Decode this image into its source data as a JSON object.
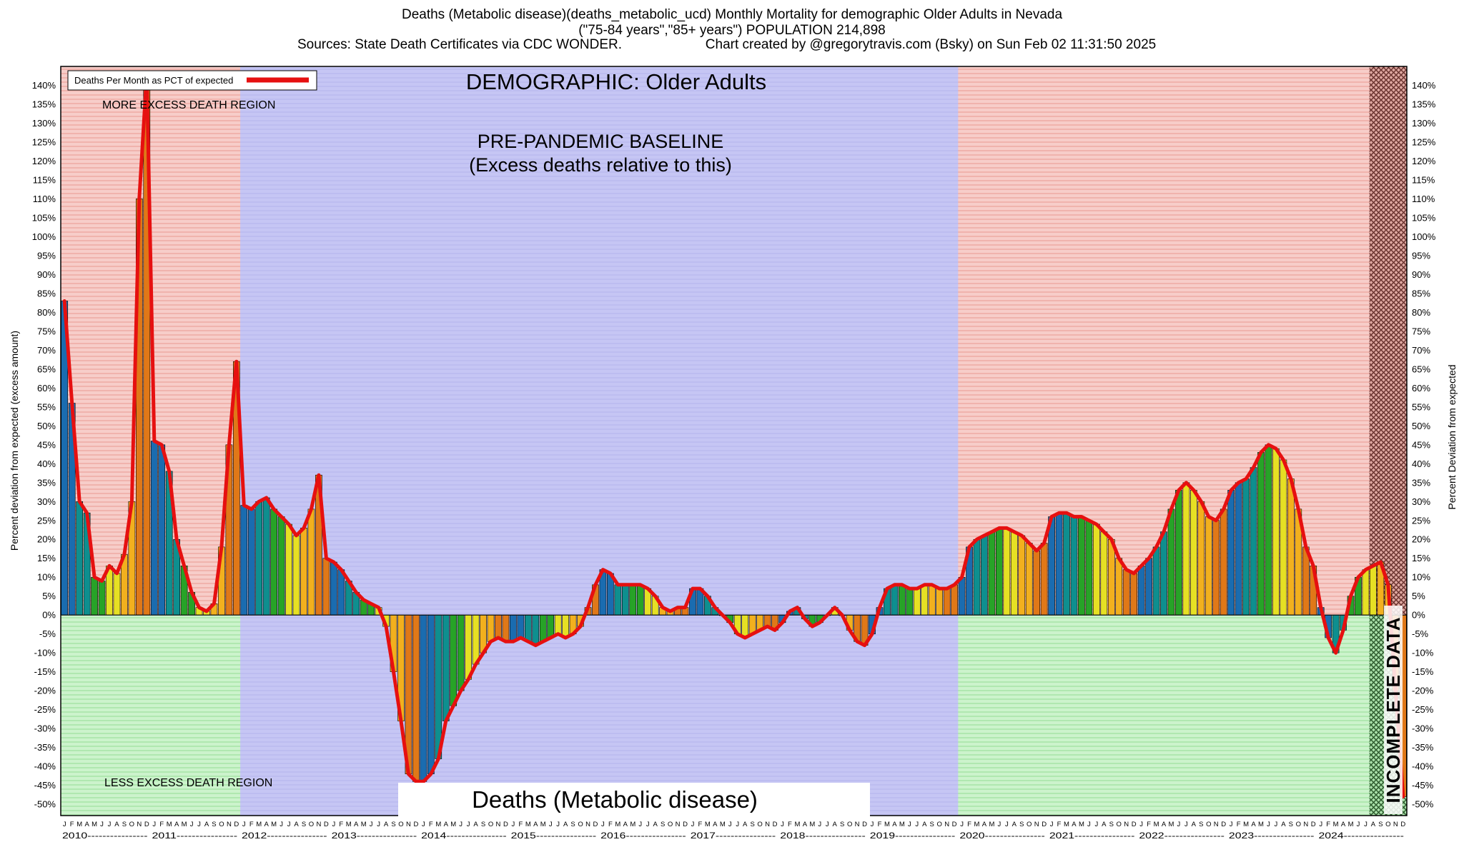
{
  "title": {
    "line1": "Deaths (Metabolic disease)(deaths_metabolic_ucd) Monthly Mortality for demographic Older Adults in Nevada",
    "line2": "(\"75-84 years\",\"85+ years\") POPULATION 214,898",
    "line3_left": "Sources: State Death Certificates via CDC WONDER.",
    "line3_right": "Chart created by @gregorytravis.com (Bsky) on Sun Feb 02 11:31:50 2025"
  },
  "legend": {
    "label": "Deaths Per Month as PCT of expected"
  },
  "annotations": {
    "demographic": "DEMOGRAPHIC: Older Adults",
    "baseline_line1": "PRE-PANDEMIC BASELINE",
    "baseline_line2": "(Excess deaths relative to this)",
    "more_excess": "MORE EXCESS DEATH REGION",
    "less_excess": "LESS EXCESS DEATH REGION",
    "incomplete": "INCOMPLETE DATA",
    "chart_label": "Deaths (Metabolic disease)"
  },
  "axes": {
    "left_title": "Percent deviation from expected (excess amount)",
    "right_title": "Percent Deviation from expected",
    "y_min": -50,
    "y_max": 140,
    "y_step": 5,
    "y_unit": "%",
    "month_letters": [
      "J",
      "F",
      "M",
      "A",
      "M",
      "J",
      "J",
      "A",
      "S",
      "O",
      "N",
      "D"
    ]
  },
  "colors": {
    "line_red": "#e61010",
    "more_excess_bg": "#f7cdc9",
    "less_excess_bg": "#ccf3cc",
    "baseline_bg": "#c6c6f4",
    "incomplete_red_hatch": "#6b3430",
    "incomplete_green_hatch": "#2f5c2f",
    "bar_month_colors": [
      "#1a6cb0",
      "#1a6cb0",
      "#0e8f8f",
      "#0e8f8f",
      "#27a327",
      "#27a327",
      "#e6e024",
      "#e6e024",
      "#f2b01e",
      "#f2b01e",
      "#e07818",
      "#e07818"
    ]
  },
  "chart_data": {
    "type": "bar",
    "overlay": "line",
    "title": "Deaths (Metabolic disease) monthly percent deviation from expected",
    "ylabel": "Percent deviation from expected (excess amount)",
    "ylim": [
      -50,
      140
    ],
    "grid": "horizontal-stripes",
    "legend_position": "top-left",
    "start_year": 2010,
    "years": [
      2010,
      2011,
      2012,
      2013,
      2014,
      2015,
      2016,
      2017,
      2018,
      2019,
      2020,
      2021,
      2022,
      2023,
      2024
    ],
    "baseline_region_month_index": {
      "start": 24,
      "end": 120
    },
    "incomplete_from_index": 175,
    "unit": "%",
    "series": [
      {
        "name": "Deaths Per Month as PCT of expected",
        "values": [
          83,
          56,
          30,
          27,
          10,
          9,
          13,
          11,
          16,
          30,
          110,
          143,
          46,
          45,
          38,
          20,
          13,
          6,
          2,
          1,
          3,
          18,
          45,
          67,
          29,
          28,
          30,
          31,
          28,
          26,
          24,
          21,
          23,
          28,
          37,
          15,
          14,
          12,
          9,
          6,
          4,
          3,
          2,
          -3,
          -15,
          -28,
          -42,
          -44,
          -44,
          -42,
          -38,
          -28,
          -24,
          -20,
          -17,
          -13,
          -10,
          -7,
          -6,
          -7,
          -7,
          -6,
          -7,
          -8,
          -7,
          -6,
          -5,
          -6,
          -5,
          -3,
          2,
          8,
          12,
          11,
          8,
          8,
          8,
          8,
          7,
          5,
          2,
          1,
          2,
          2,
          7,
          7,
          5,
          2,
          0,
          -2,
          -5,
          -6,
          -5,
          -4,
          -3,
          -4,
          -2,
          1,
          2,
          -1,
          -3,
          -2,
          0,
          2,
          0,
          -4,
          -7,
          -8,
          -5,
          2,
          7,
          8,
          8,
          7,
          7,
          8,
          8,
          7,
          7,
          8,
          10,
          18,
          20,
          21,
          22,
          23,
          23,
          22,
          21,
          19,
          17,
          19,
          26,
          27,
          27,
          26,
          26,
          25,
          24,
          22,
          20,
          15,
          12,
          11,
          13,
          15,
          18,
          22,
          28,
          33,
          35,
          33,
          30,
          26,
          25,
          28,
          33,
          35,
          36,
          39,
          43,
          45,
          44,
          41,
          36,
          28,
          18,
          13,
          2,
          -6,
          -10,
          -4,
          5,
          10,
          12,
          13,
          14,
          8,
          -20,
          -48
        ]
      }
    ]
  }
}
